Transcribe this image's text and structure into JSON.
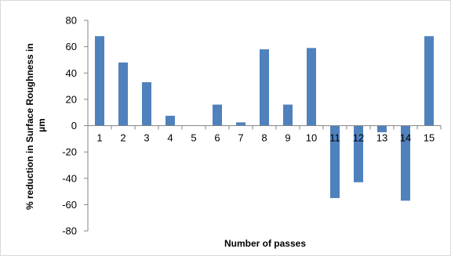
{
  "chart_data": {
    "type": "bar",
    "categories": [
      "1",
      "2",
      "3",
      "4",
      "5",
      "6",
      "7",
      "8",
      "9",
      "10",
      "11",
      "12",
      "13",
      "14",
      "15"
    ],
    "values": [
      68,
      48,
      33,
      7.5,
      0,
      16,
      2.5,
      58,
      16,
      59,
      -55,
      -43,
      -5,
      -57,
      68
    ],
    "xlabel": "Number of passes",
    "ylabel": "% reduction  in Surface Roughness in µm",
    "ylim": [
      -80,
      80
    ],
    "yticks": [
      -80,
      -60,
      -40,
      -20,
      0,
      20,
      40,
      60,
      80
    ],
    "grid": false,
    "legend": "none",
    "bar_color": "#4f81bd",
    "axis_color": "#868686"
  }
}
